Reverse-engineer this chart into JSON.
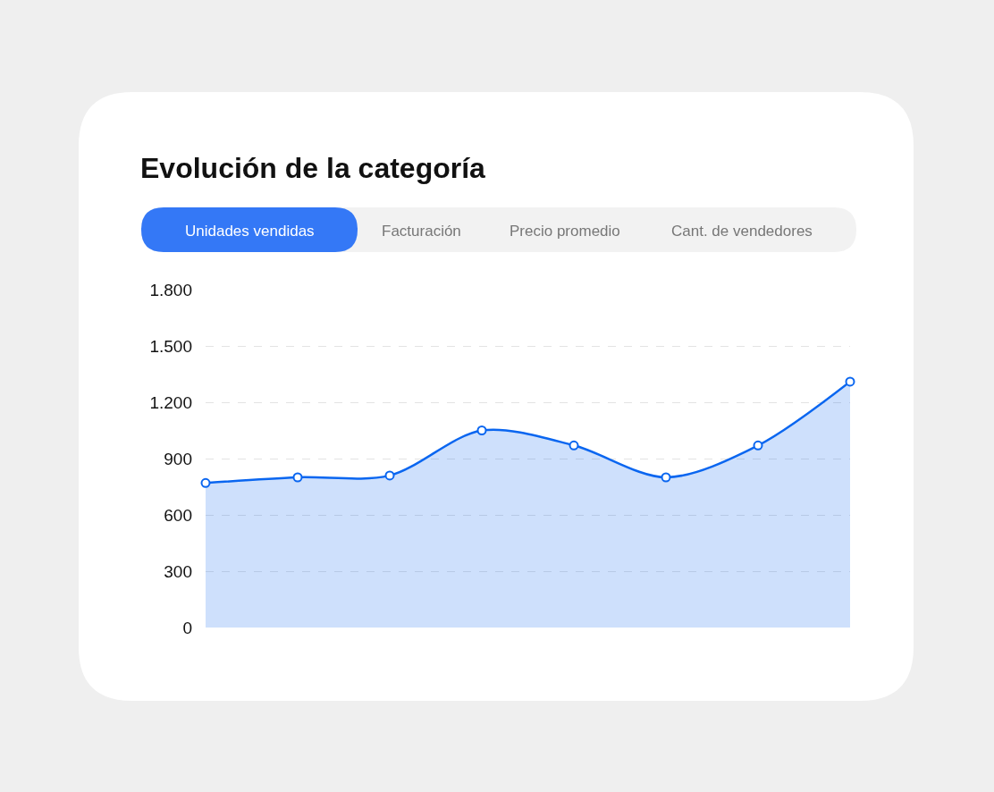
{
  "chart_data": {
    "type": "area",
    "title": "Evolución de la categoría",
    "annotations": [
      "Unidades vendidas",
      "Facturación",
      "Precio promedio",
      "Cant. de vendedores"
    ],
    "categories": [
      null,
      null,
      null,
      null,
      null,
      null,
      null,
      null
    ],
    "series": [
      {
        "color": "#0a66f0",
        "values": [
          770,
          800,
          810,
          1050,
          970,
          800,
          970,
          1310
        ]
      }
    ],
    "ylim": [
      0,
      1800
    ],
    "yticks": [
      {
        "value": 0,
        "label": "0"
      },
      {
        "value": 300,
        "label": "300"
      },
      {
        "value": 600,
        "label": "600"
      },
      {
        "value": 900,
        "label": "900"
      },
      {
        "value": 1200,
        "label": "1.200"
      },
      {
        "value": 1500,
        "label": "1.500"
      },
      {
        "value": 1800,
        "label": "1.800"
      }
    ],
    "grid": "y",
    "marker": "circle",
    "tick_labels": "y",
    "line_style": "solid"
  }
}
